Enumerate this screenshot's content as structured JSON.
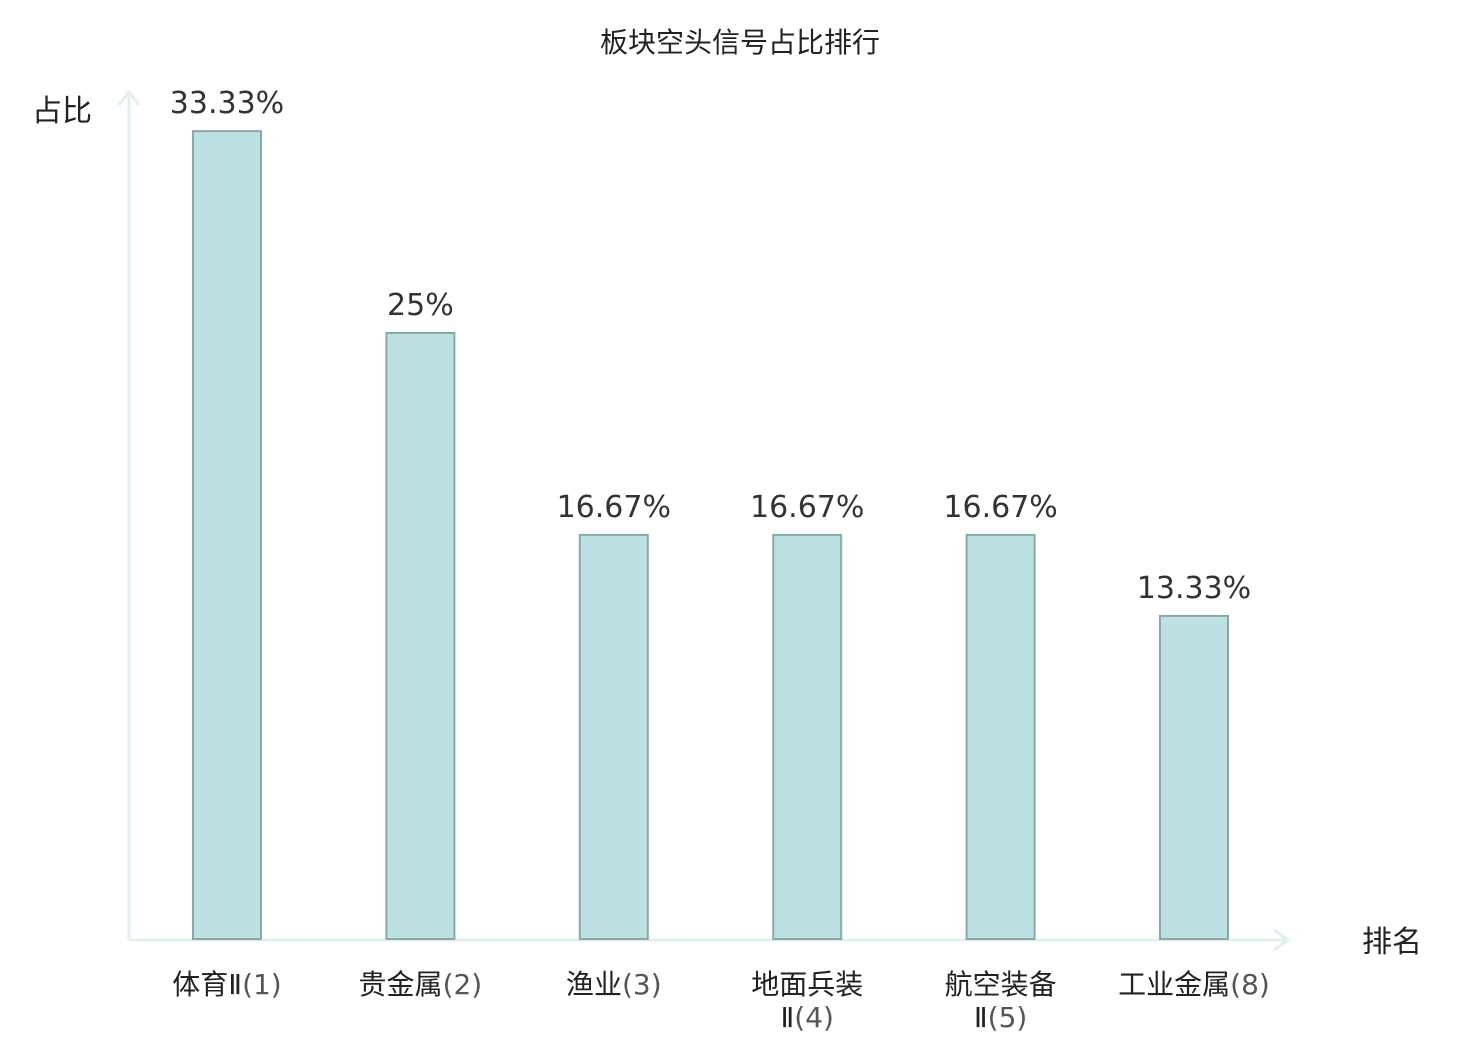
{
  "chart_data": {
    "type": "bar",
    "title": "板块空头信号占比排行",
    "ylabel": "占比",
    "xlabel": "排名",
    "ylim": [
      0,
      35
    ],
    "categories": [
      {
        "name": "体育Ⅱ",
        "rank": "(1)",
        "name_lines": [
          "体育Ⅱ"
        ],
        "highlight": false
      },
      {
        "name": "贵金属",
        "rank": "(2)",
        "name_lines": [
          "贵金属"
        ],
        "highlight": false
      },
      {
        "name": "渔业",
        "rank": "(3)",
        "name_lines": [
          "渔业"
        ],
        "highlight": false
      },
      {
        "name": "地面兵装Ⅱ",
        "rank": "(4)",
        "name_lines": [
          "地面兵装",
          "Ⅱ"
        ],
        "highlight": false
      },
      {
        "name": "航空装备Ⅱ",
        "rank": "(5)",
        "name_lines": [
          "航空装备",
          "Ⅱ"
        ],
        "highlight": false
      },
      {
        "name": "工业金属",
        "rank": "(8)",
        "name_lines": [
          "工业金属"
        ],
        "highlight": true
      }
    ],
    "values": [
      33.33,
      25,
      16.67,
      16.67,
      16.67,
      13.33
    ],
    "value_labels": [
      "33.33%",
      "25%",
      "16.67%",
      "16.67%",
      "16.67%",
      "13.33%"
    ],
    "grid": false,
    "legend": "none"
  },
  "colors": {
    "bar_fill": "#bde0e3",
    "bar_stroke": "#8aa8aa",
    "axis": "#dff0ee",
    "text": "#222222",
    "highlight": "#e02020"
  }
}
